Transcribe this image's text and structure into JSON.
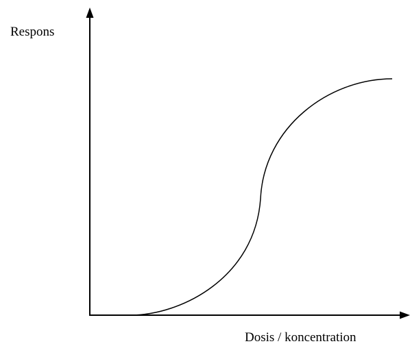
{
  "labels": {
    "y_axis": "Respons",
    "x_axis": "Dosis / koncentration"
  }
}
